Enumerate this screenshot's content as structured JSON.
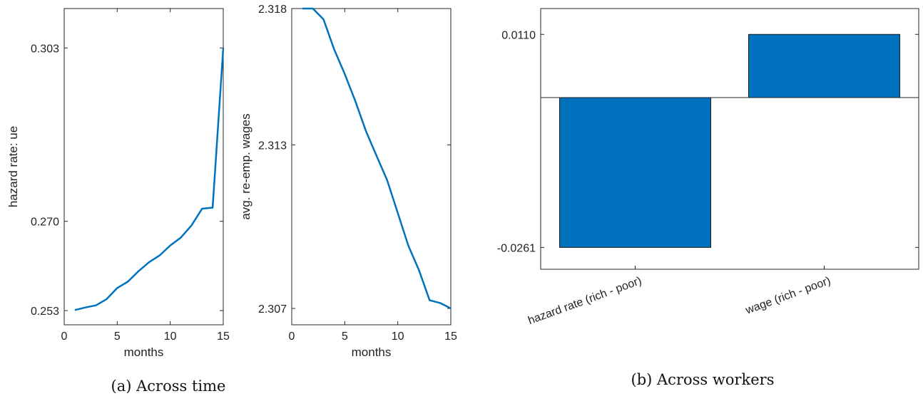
{
  "chart_data": [
    {
      "type": "line",
      "xlabel": "months",
      "ylabel": "hazard rate: ue",
      "xlim": [
        0,
        15
      ],
      "ylim": [
        0.2503,
        0.3105
      ],
      "xticks": [
        0,
        5,
        10,
        15
      ],
      "x_tick_labels": [
        "0",
        "5",
        "10",
        "15"
      ],
      "yticks": [
        0.253,
        0.27,
        0.303
      ],
      "y_tick_labels": [
        "0.253",
        "0.270",
        "0.303"
      ],
      "grid": false,
      "series": [
        {
          "color": "#0072BD",
          "x": [
            1,
            2,
            3,
            4,
            5,
            6,
            7,
            8,
            9,
            10,
            11,
            12,
            13,
            14,
            15
          ],
          "y": [
            0.2531,
            0.2536,
            0.254,
            0.2552,
            0.2573,
            0.2585,
            0.2605,
            0.2622,
            0.2635,
            0.2654,
            0.2669,
            0.2692,
            0.2724,
            0.2726,
            0.303
          ]
        }
      ]
    },
    {
      "type": "line",
      "xlabel": "months",
      "ylabel": "avg. re-emp. wages",
      "xlim": [
        0,
        15
      ],
      "ylim": [
        2.3064,
        2.318
      ],
      "xticks": [
        0,
        5,
        10,
        15
      ],
      "x_tick_labels": [
        "0",
        "5",
        "10",
        "15"
      ],
      "yticks": [
        2.307,
        2.313,
        2.318
      ],
      "y_tick_labels": [
        "2.307",
        "2.313",
        "2.318"
      ],
      "grid": false,
      "series": [
        {
          "color": "#0072BD",
          "x": [
            1,
            2,
            3,
            4,
            5,
            6,
            7,
            8,
            9,
            10,
            11,
            12,
            13,
            14,
            15
          ],
          "y": [
            2.318,
            2.318,
            2.3176,
            2.3165,
            2.3156,
            2.3146,
            2.3135,
            2.3126,
            2.3117,
            2.3105,
            2.3093,
            2.3084,
            2.3073,
            2.3072,
            2.307
          ]
        }
      ]
    },
    {
      "type": "bar",
      "categories": [
        "hazard rate (rich - poor)",
        "wage (rich - poor)"
      ],
      "values": [
        -0.0261,
        0.011
      ],
      "ylim": [
        -0.0299,
        0.0155
      ],
      "yticks": [
        -0.0261,
        0.011
      ],
      "y_tick_labels": [
        "-0.0261",
        "0.0110"
      ],
      "bar_color": "#0072BD",
      "grid": false
    }
  ],
  "captions": {
    "a": "(a) Across time",
    "b": "(b) Across workers"
  }
}
